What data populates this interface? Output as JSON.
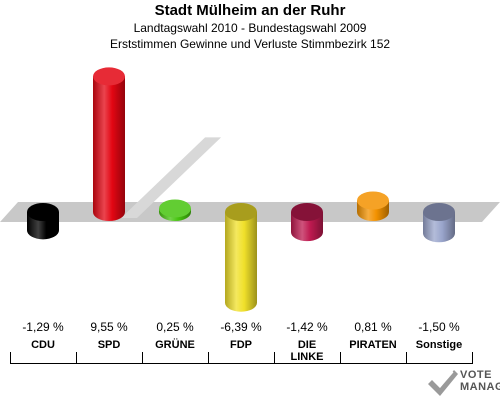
{
  "header": {
    "title": "Stadt Mülheim an der Ruhr",
    "subtitle": "Landtagswahl 2010 - Bundestagswahl 2009",
    "subtitle2": "Erststimmen Gewinne und Verluste Stimmbezirk 152"
  },
  "chart_data": {
    "type": "bar",
    "title": "Stadt Mülheim an der Ruhr",
    "categories": [
      "CDU",
      "SPD",
      "GRÜNE",
      "FDP",
      "DIE LINKE",
      "PIRATEN",
      "Sonstige"
    ],
    "values": [
      -1.29,
      9.55,
      0.25,
      -6.39,
      -1.42,
      0.81,
      -1.5
    ],
    "value_labels": [
      "-1,29 %",
      "9,55 %",
      "0,25 %",
      "-6,39 %",
      "-1,42 %",
      "0,81 %",
      "-1,50 %"
    ],
    "colors": [
      "#000000",
      "#e30613",
      "#46c40f",
      "#f0e02a",
      "#be1a50",
      "#f39200",
      "#9aa5cc"
    ],
    "xlabel": "",
    "ylabel": "",
    "grid": false,
    "legend": "none"
  },
  "logo": {
    "text_line1": "VOTE",
    "text_line2": "MANAGER"
  }
}
